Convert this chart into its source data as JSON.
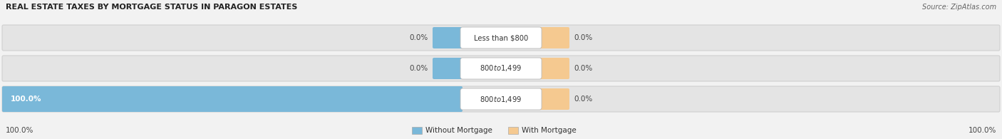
{
  "title": "REAL ESTATE TAXES BY MORTGAGE STATUS IN PARAGON ESTATES",
  "source": "Source: ZipAtlas.com",
  "categories": [
    "Less than $800",
    "$800 to $1,499",
    "$800 to $1,499"
  ],
  "without_mortgage": [
    0.0,
    0.0,
    100.0
  ],
  "with_mortgage": [
    0.0,
    0.0,
    0.0
  ],
  "bar_color_without": "#7ab8d9",
  "bar_color_with": "#f5c990",
  "bg_color": "#f2f2f2",
  "bar_bg_color": "#e4e4e4",
  "bar_border_color": "#d0d0d0",
  "legend_without": "Without Mortgage",
  "legend_with": "With Mortgage",
  "figsize": [
    14.06,
    1.95
  ],
  "dpi": 100,
  "title_fontsize": 8.0,
  "source_fontsize": 7.0,
  "bar_label_fontsize": 7.5,
  "cat_label_fontsize": 7.2,
  "legend_fontsize": 7.5
}
